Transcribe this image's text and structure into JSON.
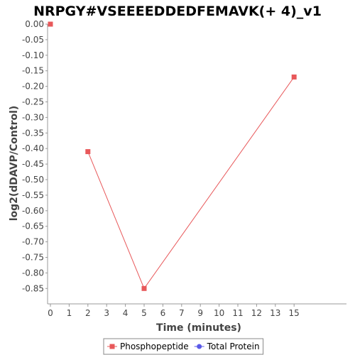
{
  "chart_data": {
    "type": "line",
    "title": "NRPGY#VSEEEEDDEDFEMAVK(+ 4)_v1",
    "xlabel": "Time (minutes)",
    "ylabel": "log2(dDAVP/Control)",
    "x_ticks": [
      "0",
      "1",
      "2",
      "3",
      "4",
      "5",
      "6",
      "7",
      "9",
      "10",
      "11",
      "12",
      "13",
      "15"
    ],
    "ylim": [
      -0.9,
      0.0
    ],
    "y_ticks": [
      "0.00",
      "-0.05",
      "-0.10",
      "-0.15",
      "-0.20",
      "-0.25",
      "-0.30",
      "-0.35",
      "-0.40",
      "-0.45",
      "-0.50",
      "-0.55",
      "-0.60",
      "-0.65",
      "-0.70",
      "-0.75",
      "-0.80",
      "-0.85"
    ],
    "grid": false,
    "legend_position": "bottom",
    "series": [
      {
        "name": "Phosphopeptide",
        "color": "#e8585a",
        "marker": "square",
        "points": [
          {
            "x": "0",
            "y": 0.0
          },
          {
            "x": "2",
            "y": -0.41
          },
          {
            "x": "5",
            "y": -0.85
          },
          {
            "x": "15",
            "y": -0.17
          }
        ],
        "segments": [
          [
            1,
            2
          ],
          [
            2,
            3
          ]
        ]
      },
      {
        "name": "Total Protein",
        "color": "#5a5ae8",
        "marker": "circle",
        "points": [],
        "segments": []
      }
    ]
  }
}
